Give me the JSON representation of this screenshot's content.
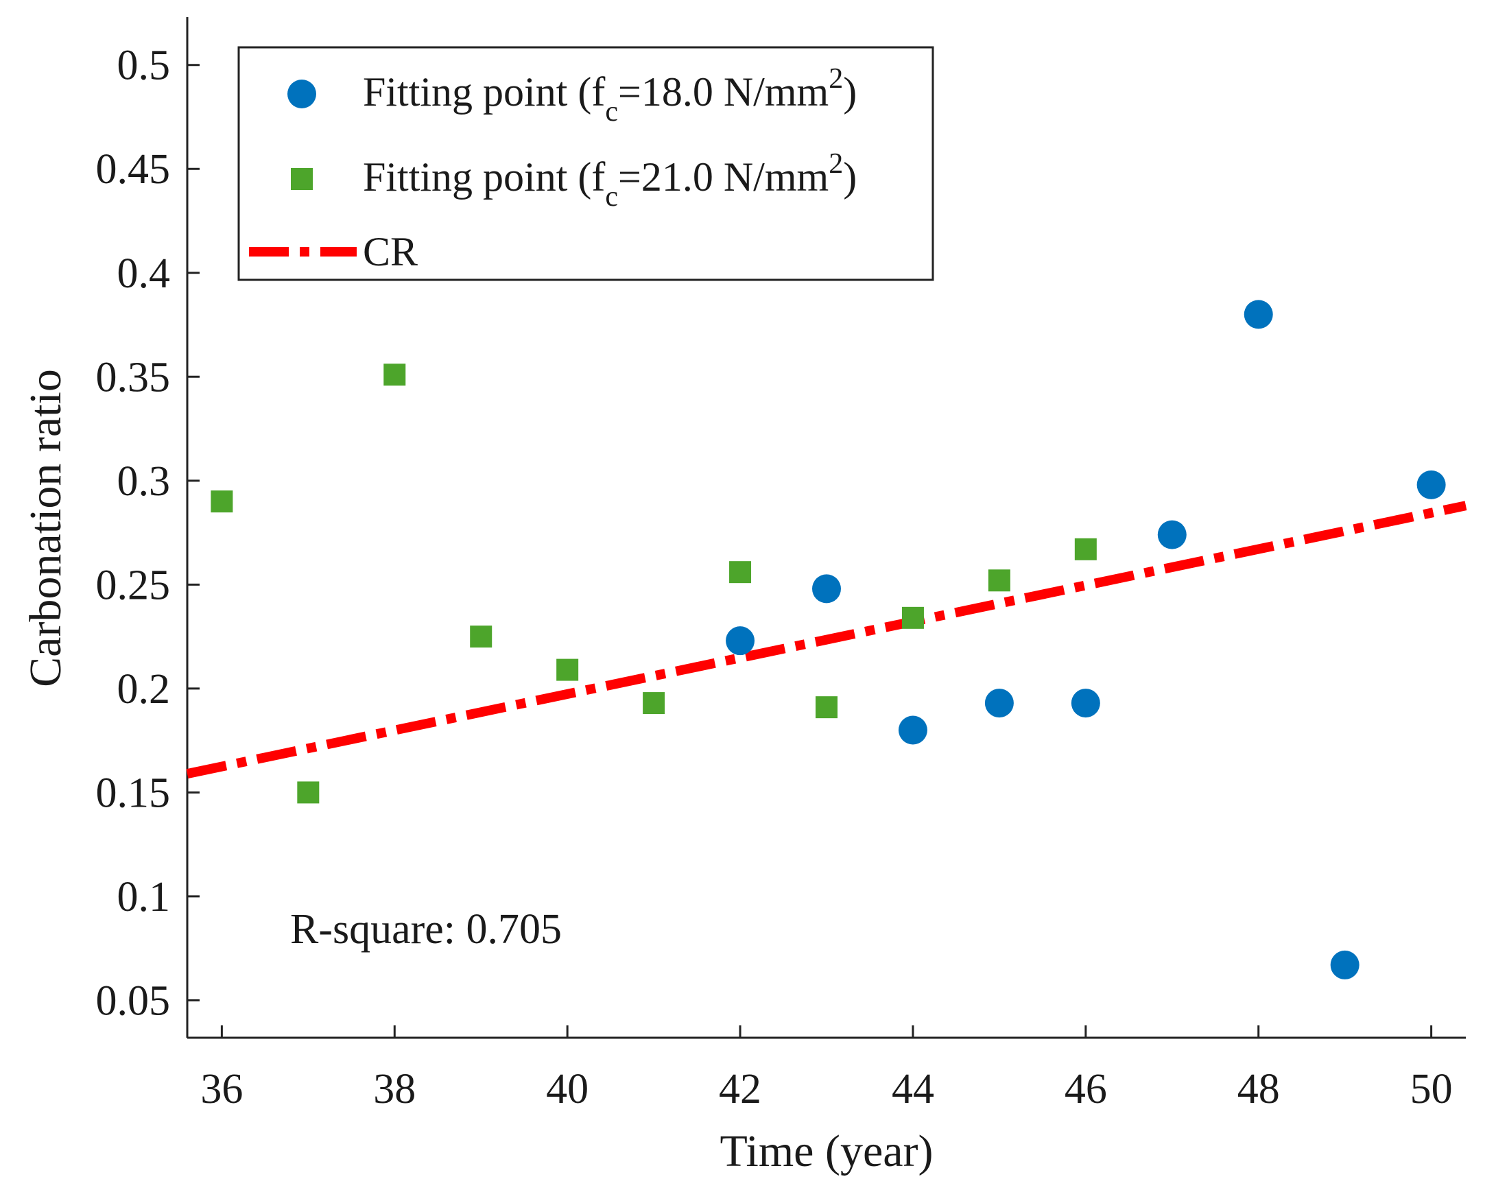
{
  "chart_data": {
    "type": "scatter",
    "title": "",
    "xlabel": "Time (year)",
    "ylabel": "Carbonation ratio",
    "xlim": [
      35.6,
      50.4
    ],
    "ylim": [
      0.032,
      0.523
    ],
    "xticks": [
      36,
      38,
      40,
      42,
      44,
      46,
      48,
      50
    ],
    "xtick_labels": [
      "36",
      "38",
      "40",
      "42",
      "44",
      "46",
      "48",
      "50"
    ],
    "yticks": [
      0.05,
      0.1,
      0.15,
      0.2,
      0.25,
      0.3,
      0.35,
      0.4,
      0.45,
      0.5
    ],
    "ytick_labels": [
      "0.05",
      "0.1",
      "0.15",
      "0.2",
      "0.25",
      "0.3",
      "0.35",
      "0.4",
      "0.45",
      "0.5"
    ],
    "grid": false,
    "legend_position": "top-left",
    "series": [
      {
        "name": "Fitting point (fc=18.0 N/mm2)",
        "legend_parts": {
          "prefix": "Fitting point (f",
          "sub": "c",
          "mid": "=18.0 N/mm",
          "sup": "2",
          "suffix": ")"
        },
        "marker": "circle",
        "color": "#0072BD",
        "x": [
          42,
          43,
          44,
          45,
          46,
          47,
          48,
          49,
          50
        ],
        "y": [
          0.223,
          0.248,
          0.18,
          0.193,
          0.193,
          0.274,
          0.38,
          0.067,
          0.298
        ]
      },
      {
        "name": "Fitting point (fc=21.0 N/mm2)",
        "legend_parts": {
          "prefix": "Fitting point (f",
          "sub": "c",
          "mid": "=21.0 N/mm",
          "sup": "2",
          "suffix": ")"
        },
        "marker": "square",
        "color": "#4DA52B",
        "x": [
          36,
          37,
          38,
          39,
          40,
          41,
          42,
          43,
          44,
          45,
          46
        ],
        "y": [
          0.29,
          0.15,
          0.351,
          0.225,
          0.209,
          0.193,
          0.256,
          0.191,
          0.234,
          0.252,
          0.267
        ]
      },
      {
        "name": "CR",
        "marker": "dashed-line",
        "color": "#FF0000",
        "x": [
          35.6,
          50.4
        ],
        "y": [
          0.159,
          0.288
        ]
      }
    ],
    "annotations": [
      {
        "text": "R-square: 0.705",
        "position": "bottom-left"
      }
    ]
  }
}
